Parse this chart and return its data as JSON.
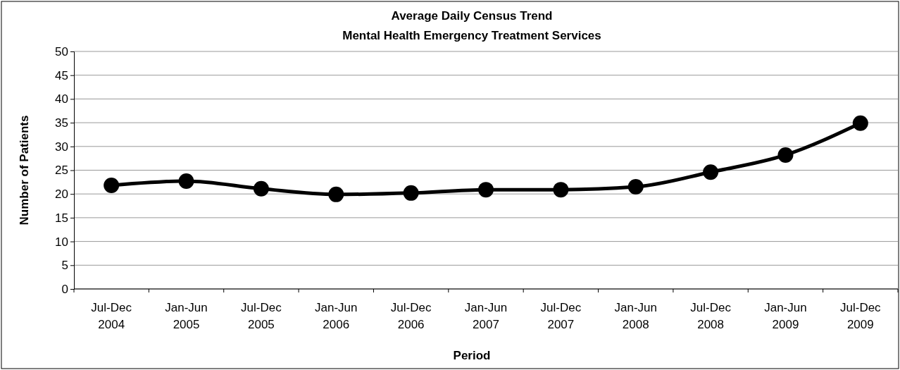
{
  "chart_data": {
    "type": "line",
    "title": "Average Daily Census Trend",
    "subtitle": "Mental Health Emergency Treatment Services",
    "xlabel": "Period",
    "ylabel": "Number of Patients",
    "categories": [
      "Jul-Dec 2004",
      "Jan-Jun 2005",
      "Jul-Dec 2005",
      "Jan-Jun 2006",
      "Jul-Dec 2006",
      "Jan-Jun 2007",
      "Jul-Dec 2007",
      "Jan-Jun 2008",
      "Jul-Dec 2008",
      "Jan-Jun 2009",
      "Jul-Dec 2009"
    ],
    "series": [
      {
        "color": "#000000",
        "values": [
          21.8,
          22.7,
          21.1,
          19.9,
          20.2,
          20.9,
          20.9,
          21.5,
          24.6,
          28.2,
          34.9
        ]
      }
    ],
    "ylim": [
      0,
      50
    ],
    "yticks": [
      0,
      5,
      10,
      15,
      20,
      25,
      30,
      35,
      40,
      45,
      50
    ],
    "grid": "y",
    "marker": "circle",
    "line_style": "solid"
  }
}
